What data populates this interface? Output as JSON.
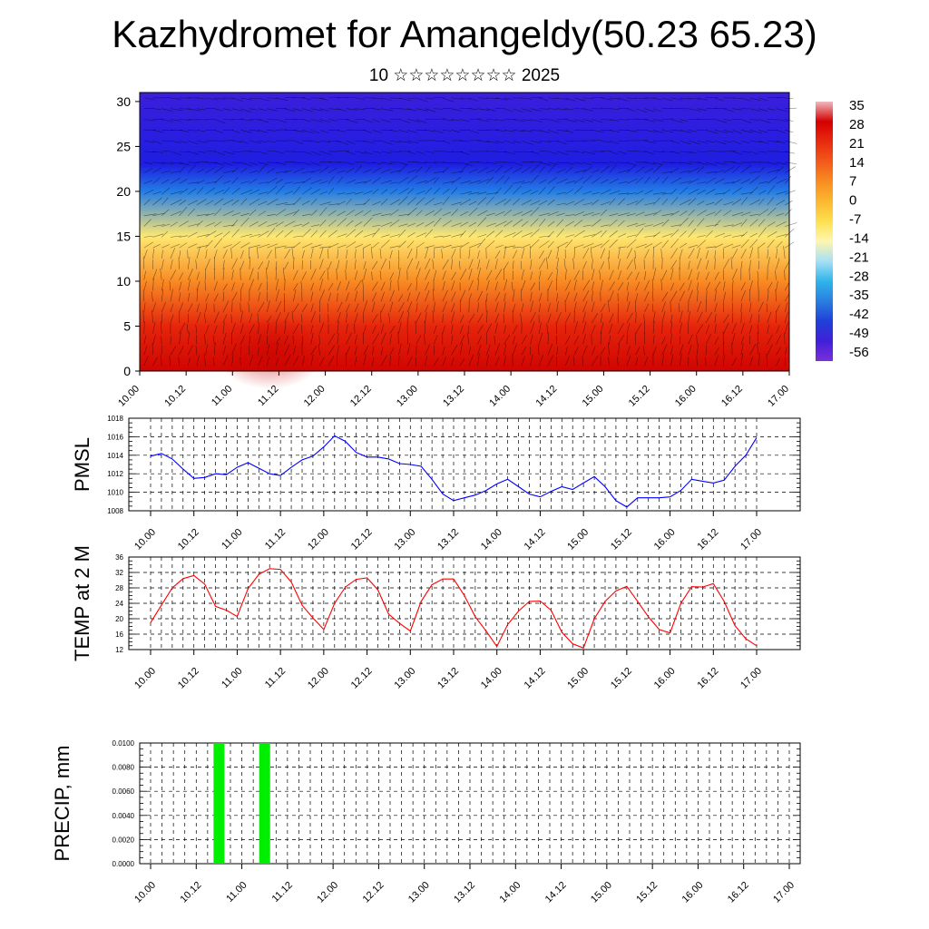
{
  "title": "Kazhydromet for Amangeldy(50.23 65.23)",
  "subtitle": "10 ☆☆☆☆☆☆☆☆ 2025",
  "chart_data": [
    {
      "type": "heatmap",
      "description_of_field": "temperature cross-section with wind barbs",
      "x_ticks": [
        "10.00",
        "10.12",
        "11.00",
        "11.12",
        "12.00",
        "12.12",
        "13.00",
        "13.12",
        "14.00",
        "14.12",
        "15.00",
        "15.12",
        "16.00",
        "16.12",
        "17.00"
      ],
      "y_ticks": [
        0,
        5,
        10,
        15,
        20,
        25,
        30
      ],
      "ylim": [
        0,
        31
      ],
      "colorbar_labels": [
        "35",
        "28",
        "21",
        "14",
        "7",
        "0",
        "-7",
        "-14",
        "-21",
        "-28",
        "-35",
        "-42",
        "-49",
        "-56"
      ],
      "colorbar_colors": [
        "#f0b8c0",
        "#d40000",
        "#e82a10",
        "#f25a1a",
        "#f88c22",
        "#fbb830",
        "#fde050",
        "#fef6b0",
        "#a8e0f5",
        "#30b4ea",
        "#2a7fe0",
        "#1f40d8",
        "#4020d8",
        "#7a30d8"
      ],
      "levels": [
        {
          "height": 0,
          "temp": 31
        },
        {
          "height": 5,
          "temp": 24
        },
        {
          "height": 10,
          "temp": 10
        },
        {
          "height": 15,
          "temp": -6
        },
        {
          "height": 20,
          "temp": -30
        },
        {
          "height": 23,
          "temp": -48
        },
        {
          "height": 31,
          "temp": -56
        }
      ]
    },
    {
      "type": "line",
      "ylabel": "PMSL",
      "ylim": [
        1008,
        1018
      ],
      "y_ticks": [
        "1008",
        "1010",
        "1012",
        "1014",
        "1016",
        "1018"
      ],
      "x_ticks": [
        "10.00",
        "10.12",
        "11.00",
        "11.12",
        "12.00",
        "12.12",
        "13.00",
        "13.12",
        "14.00",
        "14.12",
        "15.00",
        "15.12",
        "16.00",
        "16.12",
        "17.00"
      ],
      "color": "#0000ff",
      "x": [
        0,
        3,
        6,
        9,
        12,
        15,
        18,
        21,
        24,
        27,
        30,
        33,
        36,
        39,
        42,
        45,
        48,
        51,
        54,
        57,
        60,
        63,
        66,
        69,
        72,
        75,
        78,
        81,
        84,
        87,
        90,
        93,
        96,
        99,
        102,
        105,
        108,
        111,
        114,
        117,
        120,
        123,
        126,
        129,
        132,
        135,
        138,
        141,
        144,
        147,
        150,
        153,
        156,
        159,
        162,
        165,
        168
      ],
      "values": [
        1013.9,
        1014.2,
        1013.6,
        1012.5,
        1011.5,
        1011.6,
        1012.0,
        1011.9,
        1012.7,
        1013.2,
        1012.6,
        1012.0,
        1011.8,
        1012.7,
        1013.5,
        1013.9,
        1014.9,
        1016.1,
        1015.5,
        1014.3,
        1013.8,
        1013.8,
        1013.6,
        1013.1,
        1013.0,
        1012.8,
        1011.4,
        1009.8,
        1009.1,
        1009.4,
        1009.7,
        1010.2,
        1010.9,
        1011.4,
        1010.6,
        1009.8,
        1009.5,
        1010.1,
        1010.6,
        1010.3,
        1011.0,
        1011.7,
        1010.6,
        1009.1,
        1008.4,
        1009.4,
        1009.4,
        1009.4,
        1009.5,
        1010.2,
        1011.4,
        1011.2,
        1011.0,
        1011.3,
        1012.8,
        1014.0,
        1015.9
      ]
    },
    {
      "type": "line",
      "ylabel": "TEMP at 2 M",
      "ylim": [
        12,
        36
      ],
      "y_ticks": [
        "12",
        "16",
        "20",
        "24",
        "28",
        "32",
        "36"
      ],
      "x_ticks": [
        "10.00",
        "10.12",
        "11.00",
        "11.12",
        "12.00",
        "12.12",
        "13.00",
        "13.12",
        "14.00",
        "14.12",
        "15.00",
        "15.12",
        "16.00",
        "16.12",
        "17.00"
      ],
      "color": "#ff0000",
      "x": [
        0,
        3,
        6,
        9,
        12,
        15,
        18,
        21,
        24,
        27,
        30,
        33,
        36,
        39,
        42,
        45,
        48,
        51,
        54,
        57,
        60,
        63,
        66,
        69,
        72,
        75,
        78,
        81,
        84,
        87,
        90,
        93,
        96,
        99,
        102,
        105,
        108,
        111,
        114,
        117,
        120,
        123,
        126,
        129,
        132,
        135,
        138,
        141,
        144,
        147,
        150,
        153,
        156,
        159,
        162,
        165,
        168
      ],
      "values": [
        19,
        23.5,
        28,
        30.4,
        31.2,
        29,
        23.2,
        22.2,
        20.6,
        27.8,
        31.5,
        33,
        32.8,
        29.5,
        23.5,
        20.2,
        17.2,
        24,
        28.2,
        30.2,
        30.6,
        27.5,
        21.2,
        18.8,
        16.8,
        24.5,
        28.8,
        30.3,
        30.3,
        26,
        20.5,
        16.8,
        12.8,
        18.5,
        22,
        24.5,
        24.6,
        22.2,
        16.5,
        13.5,
        12.4,
        20,
        24.5,
        27.2,
        28.4,
        24.5,
        20.5,
        17.2,
        16.3,
        24,
        28.3,
        28.2,
        29.1,
        24.5,
        18.2,
        14.8,
        13
      ]
    },
    {
      "type": "bar",
      "ylabel": "PRECIP, mm",
      "ylim": [
        0,
        0.01
      ],
      "y_ticks": [
        "0.0000",
        "0.0020",
        "0.0040",
        "0.0060",
        "0.0080",
        "0.0100"
      ],
      "x_ticks": [
        "10.00",
        "10.12",
        "11.00",
        "11.12",
        "12.00",
        "12.12",
        "13.00",
        "13.12",
        "14.00",
        "14.12",
        "15.00",
        "15.12",
        "16.00",
        "16.12",
        "17.00"
      ],
      "color": "#00ee00",
      "bars": [
        {
          "x": 18,
          "value": 0.01
        },
        {
          "x": 30,
          "value": 0.01
        }
      ]
    }
  ]
}
